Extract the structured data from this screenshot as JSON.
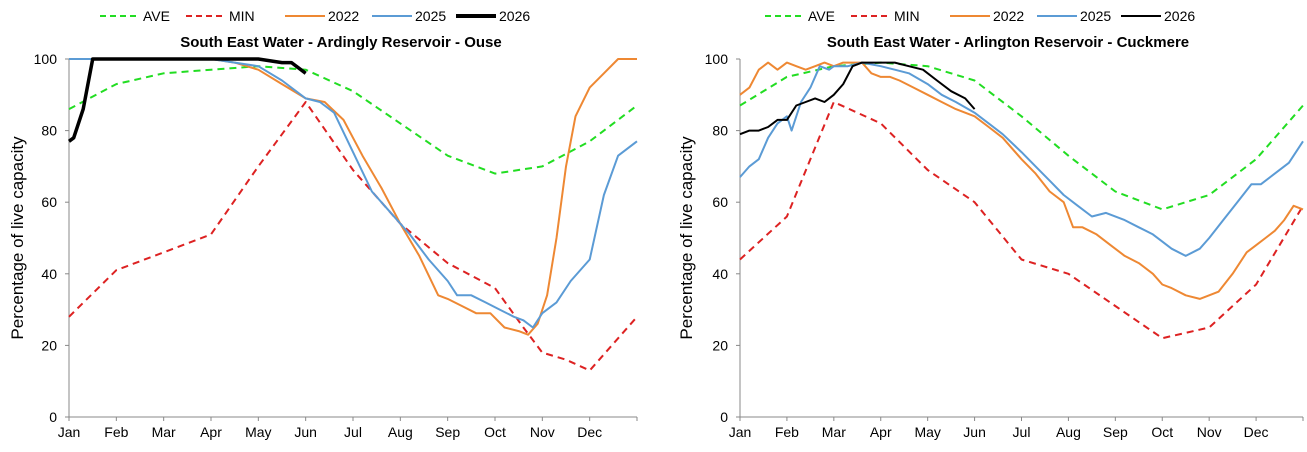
{
  "chart_data": [
    {
      "type": "line",
      "title": "South East Water - Ardingly Reservoir - Ouse",
      "xlabel": "",
      "ylabel": "Percentage of  live capacity",
      "ylim": [
        0,
        100
      ],
      "y_ticks": [
        0,
        20,
        40,
        60,
        80,
        100
      ],
      "x_ticks": [
        "Jan",
        "Feb",
        "Mar",
        "Apr",
        "May",
        "Jun",
        "Jul",
        "Aug",
        "Sep",
        "Oct",
        "Nov",
        "Dec"
      ],
      "x_range": [
        0,
        12
      ],
      "grid": false,
      "legend": "top",
      "series": [
        {
          "name": "AVE",
          "color": "#22dd22",
          "style": "dashed",
          "x": [
            0,
            1,
            2,
            3,
            4,
            5,
            6,
            7,
            8,
            9,
            10,
            11,
            12
          ],
          "y": [
            86,
            93,
            96,
            97,
            98,
            97,
            91,
            82,
            73,
            68,
            70,
            77,
            87
          ]
        },
        {
          "name": "MIN",
          "color": "#dd2222",
          "style": "dashed",
          "x": [
            0,
            1,
            2,
            3,
            4,
            5,
            6,
            7,
            8,
            9,
            9.6,
            10,
            10.5,
            11,
            12
          ],
          "y": [
            28,
            41,
            46,
            51,
            70,
            88,
            69,
            54,
            43,
            36,
            25,
            18,
            16,
            13,
            28
          ]
        },
        {
          "name": "2022",
          "color": "#ee8833",
          "style": "solid",
          "x": [
            0,
            1,
            2,
            3,
            3.5,
            4,
            4.5,
            5,
            5.4,
            5.8,
            6.2,
            6.6,
            7,
            7.4,
            7.8,
            8,
            8.3,
            8.6,
            8.9,
            9.2,
            9.5,
            9.7,
            9.9,
            10.1,
            10.3,
            10.5,
            10.7,
            11,
            11.3,
            11.6,
            12
          ],
          "y": [
            100,
            100,
            100,
            100,
            99,
            97,
            93,
            89,
            88,
            83,
            73,
            64,
            54,
            45,
            34,
            33,
            31,
            29,
            29,
            25,
            24,
            23,
            26,
            34,
            50,
            70,
            84,
            92,
            96,
            100,
            100
          ]
        },
        {
          "name": "2025",
          "color": "#5b9bd5",
          "style": "solid",
          "x": [
            0,
            1,
            2,
            3,
            3.5,
            4,
            4.5,
            5,
            5.3,
            5.6,
            6,
            6.4,
            6.8,
            7.2,
            7.6,
            8,
            8.2,
            8.5,
            8.8,
            9.1,
            9.4,
            9.6,
            9.8,
            10,
            10.3,
            10.6,
            11,
            11.3,
            11.6,
            12
          ],
          "y": [
            100,
            100,
            100,
            100,
            99,
            98,
            94,
            89,
            88,
            85,
            74,
            63,
            57,
            51,
            44,
            38,
            34,
            34,
            32,
            30,
            28,
            27,
            25,
            29,
            32,
            38,
            44,
            62,
            73,
            77
          ]
        },
        {
          "name": "2026",
          "color": "#000000",
          "style": "solid",
          "x": [
            0,
            0.1,
            0.3,
            0.5,
            1,
            2,
            3,
            4,
            4.5,
            4.7,
            5
          ],
          "y": [
            77,
            78,
            86,
            100,
            100,
            100,
            100,
            100,
            99,
            99,
            96
          ]
        }
      ]
    },
    {
      "type": "line",
      "title": "South East Water - Arlington Reservoir - Cuckmere",
      "xlabel": "",
      "ylabel": "Percentage of  live capacity",
      "ylim": [
        0,
        100
      ],
      "y_ticks": [
        0,
        20,
        40,
        60,
        80,
        100
      ],
      "x_ticks": [
        "Jan",
        "Feb",
        "Mar",
        "Apr",
        "May",
        "Jun",
        "Jul",
        "Aug",
        "Sep",
        "Oct",
        "Nov",
        "Dec"
      ],
      "x_range": [
        0,
        12
      ],
      "grid": false,
      "legend": "top",
      "series": [
        {
          "name": "AVE",
          "color": "#22dd22",
          "style": "dashed",
          "x": [
            0,
            1,
            2,
            3,
            4,
            5,
            6,
            7,
            8,
            9,
            10,
            11,
            12
          ],
          "y": [
            87,
            95,
            98,
            99,
            98,
            94,
            84,
            73,
            63,
            58,
            62,
            72,
            87
          ]
        },
        {
          "name": "MIN",
          "color": "#dd2222",
          "style": "dashed",
          "x": [
            0,
            1,
            2,
            3,
            4,
            5,
            6,
            7,
            8,
            9,
            10,
            11,
            12
          ],
          "y": [
            44,
            56,
            88,
            82,
            69,
            60,
            44,
            40,
            31,
            22,
            25,
            37,
            59
          ]
        },
        {
          "name": "2022",
          "color": "#ee8833",
          "style": "solid",
          "x": [
            0,
            0.2,
            0.4,
            0.6,
            0.8,
            1,
            1.2,
            1.4,
            1.6,
            1.8,
            2,
            2.2,
            2.4,
            2.6,
            2.8,
            3,
            3.2,
            3.4,
            3.7,
            4,
            4.3,
            4.6,
            5,
            5.3,
            5.6,
            6,
            6.3,
            6.6,
            6.9,
            7.1,
            7.3,
            7.6,
            7.9,
            8.2,
            8.5,
            8.8,
            9,
            9.2,
            9.5,
            9.8,
            10,
            10.2,
            10.5,
            10.8,
            11,
            11.2,
            11.4,
            11.6,
            11.8,
            12
          ],
          "y": [
            90,
            92,
            97,
            99,
            97,
            99,
            98,
            97,
            98,
            99,
            98,
            99,
            99,
            99,
            96,
            95,
            95,
            94,
            92,
            90,
            88,
            86,
            84,
            81,
            78,
            72,
            68,
            63,
            60,
            53,
            53,
            51,
            48,
            45,
            43,
            40,
            37,
            36,
            34,
            33,
            34,
            35,
            40,
            46,
            48,
            50,
            52,
            55,
            59,
            58
          ]
        },
        {
          "name": "2025",
          "color": "#5b9bd5",
          "style": "solid",
          "x": [
            0,
            0.2,
            0.4,
            0.6,
            0.8,
            1,
            1.1,
            1.3,
            1.5,
            1.7,
            1.9,
            2,
            2.3,
            2.6,
            3,
            3.3,
            3.6,
            4,
            4.3,
            4.6,
            5,
            5.3,
            5.6,
            6,
            6.3,
            6.6,
            6.9,
            7.2,
            7.5,
            7.8,
            8.2,
            8.5,
            8.8,
            9,
            9.2,
            9.5,
            9.8,
            10,
            10.3,
            10.6,
            10.9,
            11.1,
            11.4,
            11.7,
            12
          ],
          "y": [
            67,
            70,
            72,
            78,
            82,
            84,
            80,
            88,
            92,
            98,
            97,
            98,
            98,
            99,
            98,
            97,
            96,
            93,
            90,
            88,
            85,
            82,
            79,
            74,
            70,
            66,
            62,
            59,
            56,
            57,
            55,
            53,
            51,
            49,
            47,
            45,
            47,
            50,
            55,
            60,
            65,
            65,
            68,
            71,
            77
          ]
        },
        {
          "name": "2026",
          "color": "#000000",
          "style": "solid",
          "x": [
            0,
            0.2,
            0.4,
            0.6,
            0.8,
            1,
            1.2,
            1.4,
            1.6,
            1.8,
            2,
            2.2,
            2.4,
            2.6,
            2.8,
            3,
            3.3,
            3.6,
            3.9,
            4.2,
            4.5,
            4.8,
            5
          ],
          "y": [
            79,
            80,
            80,
            81,
            83,
            83,
            87,
            88,
            89,
            88,
            90,
            93,
            98,
            99,
            99,
            99,
            99,
            98,
            97,
            94,
            91,
            89,
            86
          ]
        }
      ]
    }
  ]
}
